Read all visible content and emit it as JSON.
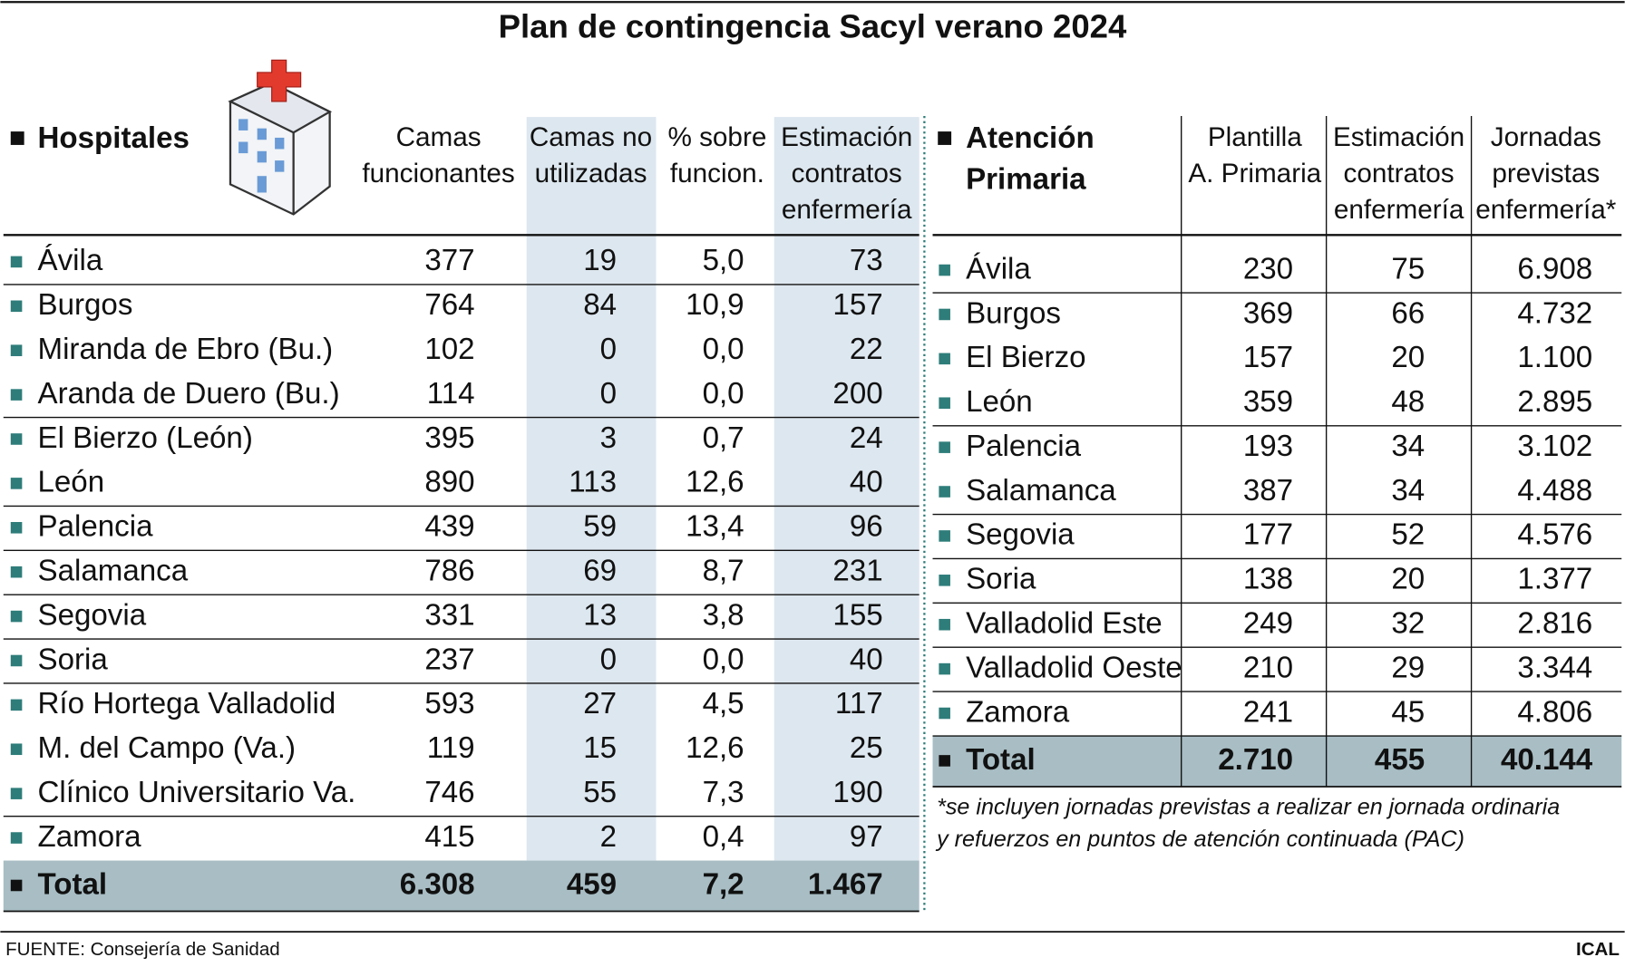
{
  "title": "Plan de contingencia Sacyl verano 2024",
  "hospitals": {
    "heading": "Hospitales",
    "columns": [
      [
        "Camas",
        "funcionantes"
      ],
      [
        "Camas no",
        "utilizadas"
      ],
      [
        "% sobre",
        "funcion."
      ],
      [
        "Estimación",
        "contratos",
        "enfermería"
      ]
    ],
    "rows": [
      [
        "Ávila",
        "377",
        "19",
        "5,0",
        "73"
      ],
      [
        "Burgos",
        "764",
        "84",
        "10,9",
        "157"
      ],
      [
        "Miranda de Ebro (Bu.)",
        "102",
        "0",
        "0,0",
        "22"
      ],
      [
        "Aranda de Duero (Bu.)",
        "114",
        "0",
        "0,0",
        "200"
      ],
      [
        "El Bierzo (León)",
        "395",
        "3",
        "0,7",
        "24"
      ],
      [
        "León",
        "890",
        "113",
        "12,6",
        "40"
      ],
      [
        "Palencia",
        "439",
        "59",
        "13,4",
        "96"
      ],
      [
        "Salamanca",
        "786",
        "69",
        "8,7",
        "231"
      ],
      [
        "Segovia",
        "331",
        "13",
        "3,8",
        "155"
      ],
      [
        "Soria",
        "237",
        "0",
        "0,0",
        "40"
      ],
      [
        "Río Hortega Valladolid",
        "593",
        "27",
        "4,5",
        "117"
      ],
      [
        "M. del Campo (Va.)",
        "119",
        "15",
        "12,6",
        "25"
      ],
      [
        "Clínico Universitario Va.",
        "746",
        "55",
        "7,3",
        "190"
      ],
      [
        "Zamora",
        "415",
        "2",
        "0,4",
        "97"
      ]
    ],
    "total": [
      "Total",
      "6.308",
      "459",
      "7,2",
      "1.467"
    ]
  },
  "primary_care": {
    "heading": [
      "Atención",
      "Primaria"
    ],
    "columns": [
      [
        "Plantilla",
        "A. Primaria"
      ],
      [
        "Estimación",
        "contratos",
        "enfermería"
      ],
      [
        "Jornadas",
        "previstas",
        "enfermería*"
      ]
    ],
    "rows": [
      [
        "Ávila",
        "230",
        "75",
        "6.908"
      ],
      [
        "Burgos",
        "369",
        "66",
        "4.732"
      ],
      [
        "El Bierzo",
        "157",
        "20",
        "1.100"
      ],
      [
        "León",
        "359",
        "48",
        "2.895"
      ],
      [
        "Palencia",
        "193",
        "34",
        "3.102"
      ],
      [
        "Salamanca",
        "387",
        "34",
        "4.488"
      ],
      [
        "Segovia",
        "177",
        "52",
        "4.576"
      ],
      [
        "Soria",
        "138",
        "20",
        "1.377"
      ],
      [
        "Valladolid Este",
        "249",
        "32",
        "2.816"
      ],
      [
        "Valladolid Oeste",
        "210",
        "29",
        "3.344"
      ],
      [
        "Zamora",
        "241",
        "45",
        "4.806"
      ]
    ],
    "total": [
      "Total",
      "2.710",
      "455",
      "40.144"
    ]
  },
  "footnote": [
    "*se incluyen jornadas previstas a realizar en jornada ordinaria",
    "y refuerzos en puntos de atención continuada (PAC)"
  ],
  "source": "FUENTE: Consejería de Sanidad",
  "brand": "ICAL"
}
